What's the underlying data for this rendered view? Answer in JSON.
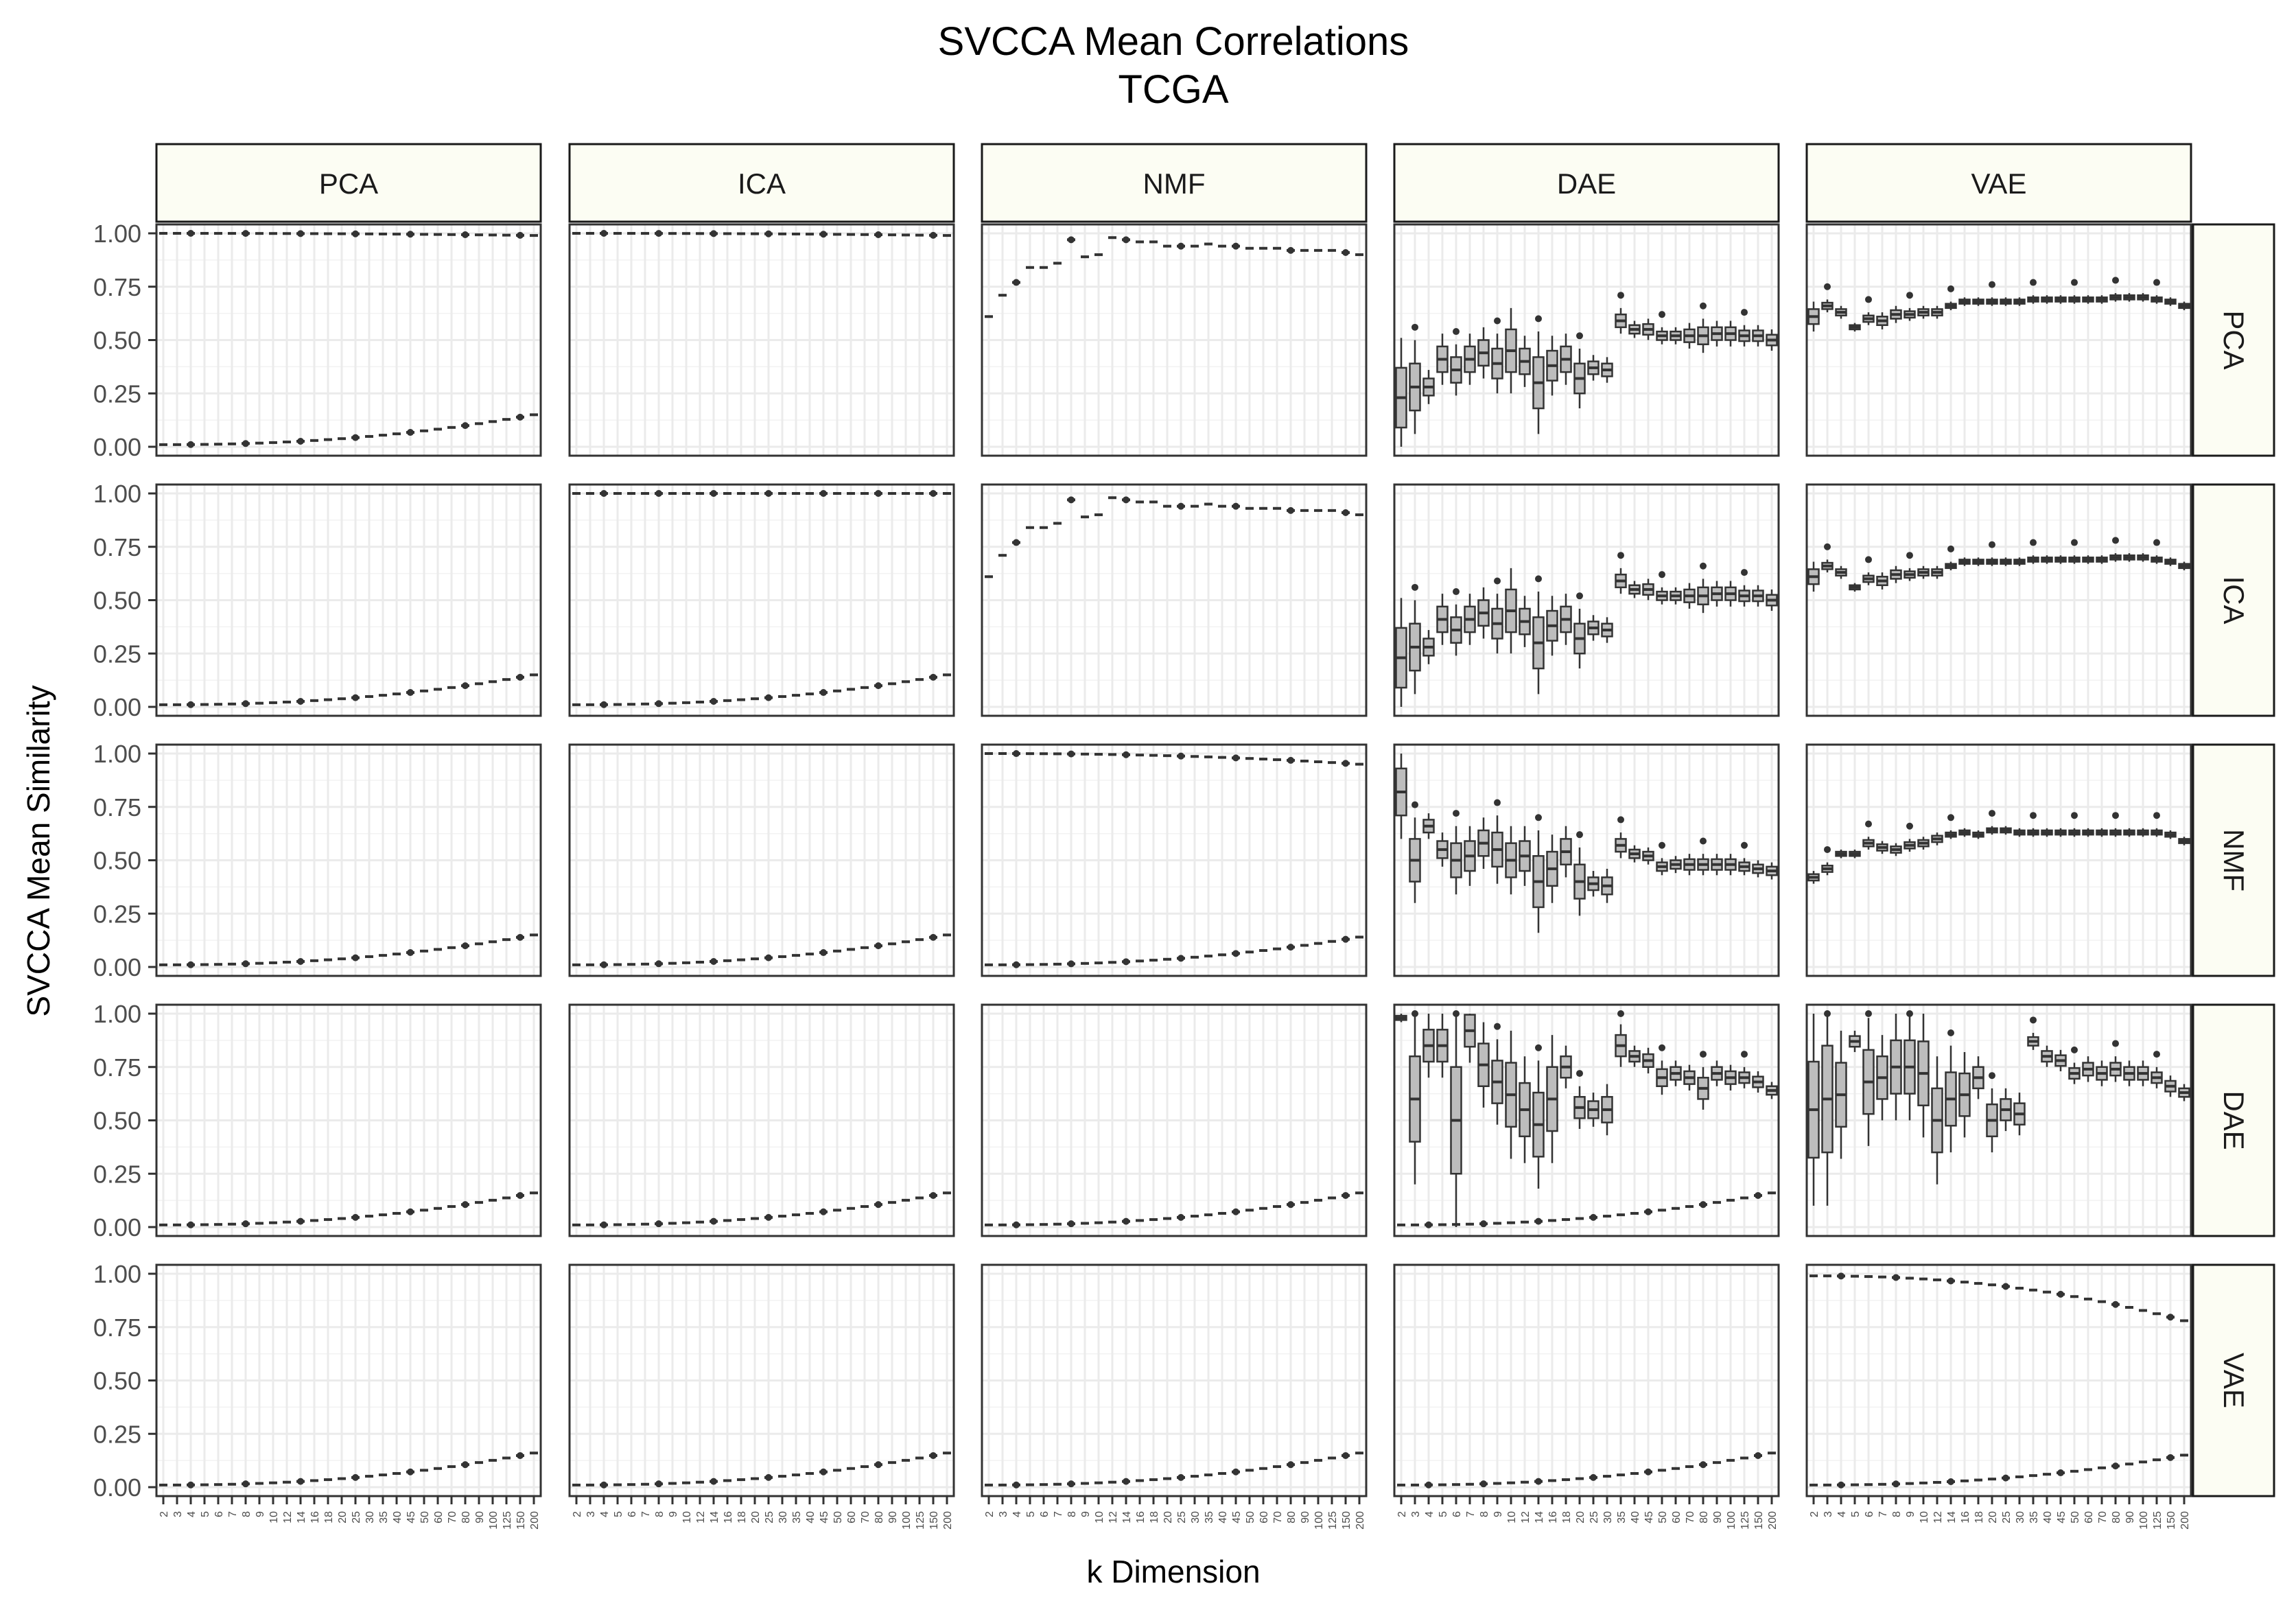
{
  "chart_data": {
    "type": "box",
    "title": "SVCCA Mean Correlations",
    "subtitle": "TCGA",
    "xlabel": "k Dimension",
    "ylabel": "SVCCA Mean Similarity",
    "ylim": [
      0,
      1
    ],
    "y_ticks": [
      "0.00",
      "0.25",
      "0.50",
      "0.75",
      "1.00"
    ],
    "x_categories": [
      "2",
      "3",
      "4",
      "5",
      "6",
      "7",
      "8",
      "9",
      "10",
      "12",
      "14",
      "16",
      "18",
      "20",
      "25",
      "30",
      "35",
      "40",
      "45",
      "50",
      "60",
      "70",
      "80",
      "90",
      "100",
      "125",
      "150",
      "200"
    ],
    "grid": true,
    "col_facets": [
      "PCA",
      "ICA",
      "NMF",
      "DAE",
      "VAE"
    ],
    "row_facets": [
      "PCA",
      "ICA",
      "NMF",
      "DAE",
      "VAE"
    ],
    "panels": [
      {
        "row": "PCA",
        "col": "PCA",
        "upper": {
          "start": 1.0,
          "end": 0.99,
          "spread": 0.0
        },
        "lower": {
          "start": 0.01,
          "end": 0.15
        }
      },
      {
        "row": "PCA",
        "col": "ICA",
        "upper": {
          "start": 1.0,
          "end": 0.99,
          "spread": 0.0
        },
        "lower": null
      },
      {
        "row": "PCA",
        "col": "NMF",
        "upper_values": [
          0.61,
          0.71,
          0.77,
          0.84,
          0.84,
          0.86,
          0.97,
          0.89,
          0.9,
          0.98,
          0.97,
          0.96,
          0.96,
          0.94,
          0.94,
          0.94,
          0.95,
          0.94,
          0.94,
          0.93,
          0.93,
          0.93,
          0.92,
          0.92,
          0.92,
          0.92,
          0.91,
          0.9
        ],
        "lower": null
      },
      {
        "row": "PCA",
        "col": "DAE",
        "box_medians": [
          0.23,
          0.28,
          0.28,
          0.41,
          0.36,
          0.41,
          0.44,
          0.39,
          0.45,
          0.4,
          0.3,
          0.38,
          0.41,
          0.32,
          0.37,
          0.36,
          0.59,
          0.55,
          0.55,
          0.52,
          0.52,
          0.52,
          0.52,
          0.53,
          0.53,
          0.52,
          0.52,
          0.5
        ],
        "box_spread": [
          0.28,
          0.22,
          0.08,
          0.12,
          0.12,
          0.12,
          0.12,
          0.14,
          0.2,
          0.12,
          0.24,
          0.14,
          0.12,
          0.14,
          0.06,
          0.06,
          0.06,
          0.04,
          0.05,
          0.04,
          0.04,
          0.06,
          0.08,
          0.06,
          0.06,
          0.05,
          0.05,
          0.05
        ],
        "lower": null
      },
      {
        "row": "PCA",
        "col": "VAE",
        "box_medians": [
          0.61,
          0.66,
          0.63,
          0.56,
          0.6,
          0.59,
          0.62,
          0.62,
          0.63,
          0.63,
          0.66,
          0.68,
          0.68,
          0.68,
          0.68,
          0.68,
          0.69,
          0.69,
          0.69,
          0.69,
          0.69,
          0.69,
          0.7,
          0.7,
          0.7,
          0.69,
          0.68,
          0.66
        ],
        "box_spread": [
          0.07,
          0.03,
          0.03,
          0.02,
          0.03,
          0.04,
          0.04,
          0.03,
          0.03,
          0.03,
          0.02,
          0.02,
          0.02,
          0.02,
          0.02,
          0.02,
          0.02,
          0.02,
          0.02,
          0.02,
          0.02,
          0.02,
          0.02,
          0.02,
          0.02,
          0.02,
          0.02,
          0.02
        ],
        "lower": null
      },
      {
        "row": "ICA",
        "col": "PCA",
        "upper": null,
        "lower": {
          "start": 0.01,
          "end": 0.15
        }
      },
      {
        "row": "ICA",
        "col": "ICA",
        "upper": {
          "start": 1.0,
          "end": 1.0,
          "spread": 0.0
        },
        "lower": {
          "start": 0.01,
          "end": 0.15
        }
      },
      {
        "row": "ICA",
        "col": "NMF",
        "upper_values": [
          0.61,
          0.71,
          0.77,
          0.84,
          0.84,
          0.86,
          0.97,
          0.89,
          0.9,
          0.98,
          0.97,
          0.96,
          0.96,
          0.94,
          0.94,
          0.94,
          0.95,
          0.94,
          0.94,
          0.93,
          0.93,
          0.93,
          0.92,
          0.92,
          0.92,
          0.92,
          0.91,
          0.9
        ],
        "lower": null
      },
      {
        "row": "ICA",
        "col": "DAE",
        "box_medians": [
          0.23,
          0.28,
          0.28,
          0.41,
          0.36,
          0.41,
          0.44,
          0.39,
          0.45,
          0.4,
          0.3,
          0.38,
          0.41,
          0.32,
          0.37,
          0.36,
          0.59,
          0.55,
          0.55,
          0.52,
          0.52,
          0.52,
          0.52,
          0.53,
          0.53,
          0.52,
          0.52,
          0.5
        ],
        "box_spread": [
          0.28,
          0.22,
          0.08,
          0.12,
          0.12,
          0.12,
          0.12,
          0.14,
          0.2,
          0.12,
          0.24,
          0.14,
          0.12,
          0.14,
          0.06,
          0.06,
          0.06,
          0.04,
          0.05,
          0.04,
          0.04,
          0.06,
          0.08,
          0.06,
          0.06,
          0.05,
          0.05,
          0.05
        ],
        "lower": null
      },
      {
        "row": "ICA",
        "col": "VAE",
        "box_medians": [
          0.61,
          0.66,
          0.63,
          0.56,
          0.6,
          0.59,
          0.62,
          0.62,
          0.63,
          0.63,
          0.66,
          0.68,
          0.68,
          0.68,
          0.68,
          0.68,
          0.69,
          0.69,
          0.69,
          0.69,
          0.69,
          0.69,
          0.7,
          0.7,
          0.7,
          0.69,
          0.68,
          0.66
        ],
        "box_spread": [
          0.07,
          0.03,
          0.03,
          0.02,
          0.03,
          0.04,
          0.04,
          0.03,
          0.03,
          0.03,
          0.02,
          0.02,
          0.02,
          0.02,
          0.02,
          0.02,
          0.02,
          0.02,
          0.02,
          0.02,
          0.02,
          0.02,
          0.02,
          0.02,
          0.02,
          0.02,
          0.02,
          0.02
        ],
        "lower": null
      },
      {
        "row": "NMF",
        "col": "PCA",
        "upper": null,
        "lower": {
          "start": 0.01,
          "end": 0.15
        }
      },
      {
        "row": "NMF",
        "col": "ICA",
        "upper": null,
        "lower": {
          "start": 0.01,
          "end": 0.15
        }
      },
      {
        "row": "NMF",
        "col": "NMF",
        "upper": {
          "start": 1.0,
          "end": 0.95,
          "spread": 0.0
        },
        "lower": {
          "start": 0.01,
          "end": 0.14
        }
      },
      {
        "row": "NMF",
        "col": "DAE",
        "box_medians": [
          0.82,
          0.5,
          0.66,
          0.55,
          0.5,
          0.52,
          0.58,
          0.55,
          0.5,
          0.52,
          0.4,
          0.46,
          0.54,
          0.4,
          0.39,
          0.38,
          0.57,
          0.53,
          0.52,
          0.47,
          0.48,
          0.48,
          0.48,
          0.48,
          0.48,
          0.47,
          0.46,
          0.45
        ],
        "box_spread": [
          0.22,
          0.2,
          0.06,
          0.08,
          0.16,
          0.14,
          0.12,
          0.16,
          0.16,
          0.14,
          0.24,
          0.16,
          0.12,
          0.16,
          0.06,
          0.08,
          0.06,
          0.04,
          0.04,
          0.04,
          0.04,
          0.05,
          0.05,
          0.05,
          0.05,
          0.04,
          0.04,
          0.04
        ],
        "lower": null
      },
      {
        "row": "NMF",
        "col": "VAE",
        "box_medians": [
          0.42,
          0.46,
          0.53,
          0.53,
          0.58,
          0.56,
          0.55,
          0.57,
          0.58,
          0.6,
          0.62,
          0.63,
          0.62,
          0.64,
          0.64,
          0.63,
          0.63,
          0.63,
          0.63,
          0.63,
          0.63,
          0.63,
          0.63,
          0.63,
          0.63,
          0.63,
          0.62,
          0.59
        ],
        "box_spread": [
          0.03,
          0.03,
          0.02,
          0.02,
          0.03,
          0.03,
          0.03,
          0.03,
          0.03,
          0.03,
          0.02,
          0.02,
          0.02,
          0.02,
          0.02,
          0.02,
          0.02,
          0.02,
          0.02,
          0.02,
          0.02,
          0.02,
          0.02,
          0.02,
          0.02,
          0.02,
          0.02,
          0.02
        ],
        "lower": null
      },
      {
        "row": "DAE",
        "col": "PCA",
        "upper": null,
        "lower": {
          "start": 0.01,
          "end": 0.16
        }
      },
      {
        "row": "DAE",
        "col": "ICA",
        "upper": null,
        "lower": {
          "start": 0.01,
          "end": 0.16
        }
      },
      {
        "row": "DAE",
        "col": "NMF",
        "upper": null,
        "lower": {
          "start": 0.01,
          "end": 0.16
        }
      },
      {
        "row": "DAE",
        "col": "DAE",
        "box_medians": [
          0.98,
          0.6,
          0.85,
          0.85,
          0.5,
          0.92,
          0.76,
          0.68,
          0.62,
          0.55,
          0.48,
          0.6,
          0.75,
          0.56,
          0.55,
          0.55,
          0.85,
          0.8,
          0.78,
          0.7,
          0.72,
          0.7,
          0.65,
          0.72,
          0.7,
          0.7,
          0.68,
          0.64
        ],
        "box_spread": [
          0.02,
          0.4,
          0.15,
          0.15,
          0.5,
          0.15,
          0.2,
          0.2,
          0.3,
          0.25,
          0.3,
          0.3,
          0.1,
          0.1,
          0.08,
          0.12,
          0.1,
          0.05,
          0.06,
          0.08,
          0.06,
          0.06,
          0.1,
          0.06,
          0.06,
          0.05,
          0.05,
          0.04
        ],
        "lower": {
          "start": 0.01,
          "end": 0.16
        }
      },
      {
        "row": "DAE",
        "col": "VAE",
        "box_medians": [
          0.55,
          0.6,
          0.62,
          0.87,
          0.68,
          0.7,
          0.75,
          0.75,
          0.72,
          0.5,
          0.6,
          0.62,
          0.7,
          0.5,
          0.55,
          0.53,
          0.87,
          0.8,
          0.78,
          0.72,
          0.74,
          0.72,
          0.74,
          0.72,
          0.72,
          0.7,
          0.66,
          0.63
        ],
        "box_spread": [
          0.45,
          0.5,
          0.3,
          0.05,
          0.3,
          0.2,
          0.25,
          0.25,
          0.3,
          0.3,
          0.25,
          0.2,
          0.1,
          0.15,
          0.1,
          0.1,
          0.04,
          0.05,
          0.05,
          0.05,
          0.06,
          0.06,
          0.06,
          0.06,
          0.06,
          0.05,
          0.05,
          0.04
        ],
        "lower": null
      },
      {
        "row": "VAE",
        "col": "PCA",
        "upper": null,
        "lower": {
          "start": 0.01,
          "end": 0.16
        }
      },
      {
        "row": "VAE",
        "col": "ICA",
        "upper": null,
        "lower": {
          "start": 0.01,
          "end": 0.16
        }
      },
      {
        "row": "VAE",
        "col": "NMF",
        "upper": null,
        "lower": {
          "start": 0.01,
          "end": 0.16
        }
      },
      {
        "row": "VAE",
        "col": "DAE",
        "upper": null,
        "lower": {
          "start": 0.01,
          "end": 0.16
        }
      },
      {
        "row": "VAE",
        "col": "VAE",
        "upper": {
          "start": 0.99,
          "end": 0.78,
          "spread": 0.04
        },
        "lower": {
          "start": 0.01,
          "end": 0.15
        }
      }
    ]
  }
}
